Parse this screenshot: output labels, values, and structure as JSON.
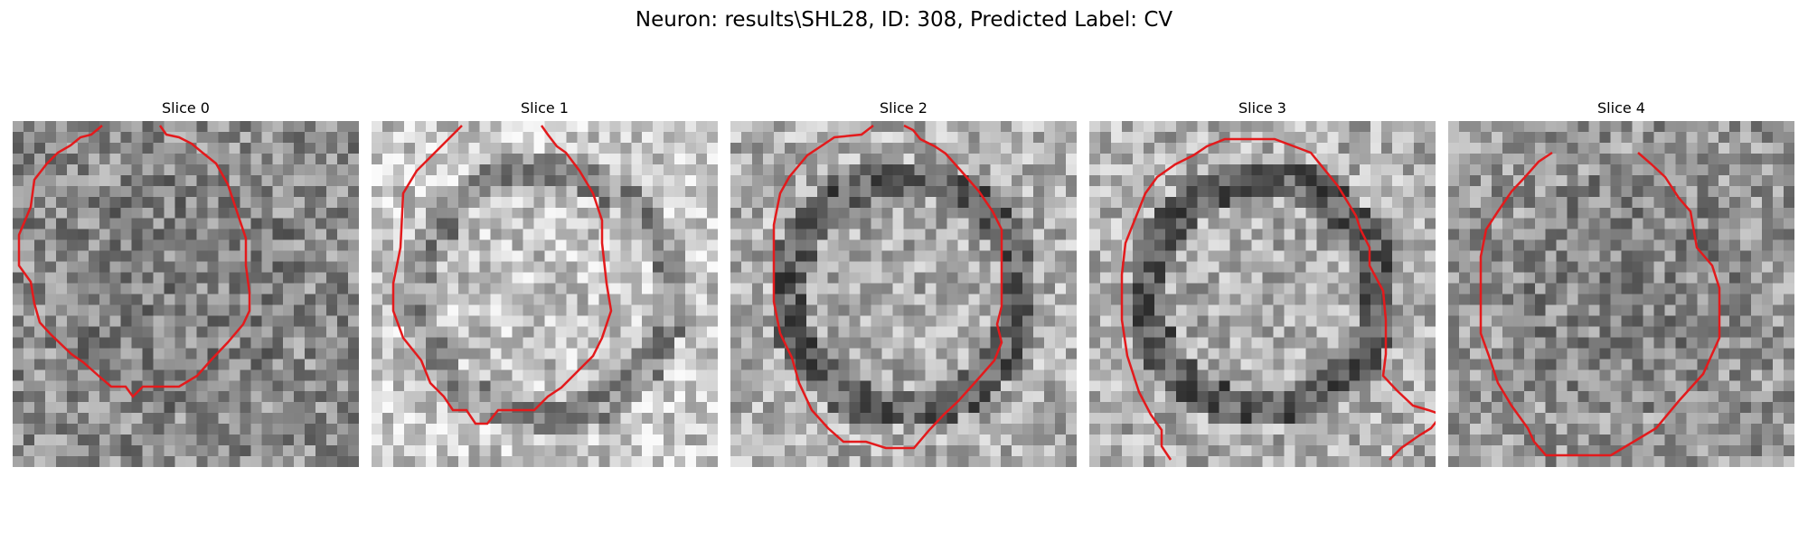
{
  "figure": {
    "title": "Neuron: results\\SHL28, ID: 308, Predicted Label: CV"
  },
  "panels": [
    {
      "label": "Slice 0",
      "style": "dark"
    },
    {
      "label": "Slice 1",
      "style": "bright"
    },
    {
      "label": "Slice 2",
      "style": "ring"
    },
    {
      "label": "Slice 3",
      "style": "ring"
    },
    {
      "label": "Slice 4",
      "style": "mid"
    }
  ],
  "contour_color": "#e31a1c"
}
